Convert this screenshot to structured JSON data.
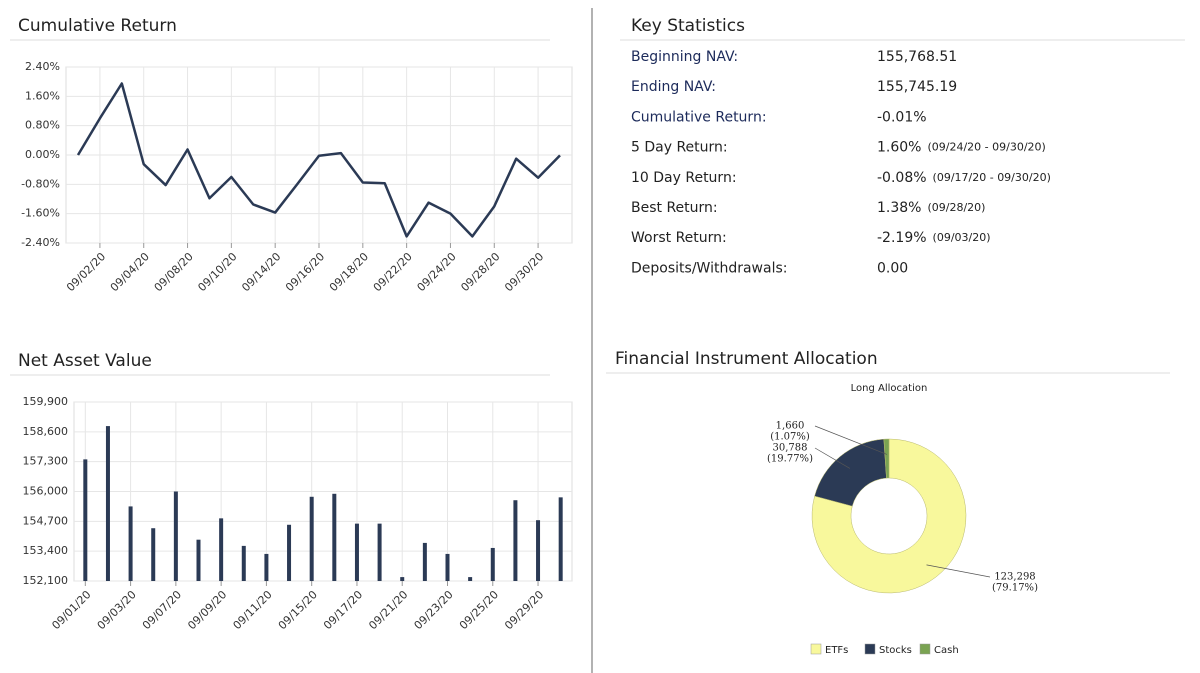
{
  "chart_data": [
    {
      "type": "line",
      "title": "Cumulative Return",
      "color": "#2b3a55",
      "categories": [
        null,
        "09/02/20",
        null,
        "09/04/20",
        null,
        "09/08/20",
        null,
        "09/10/20",
        null,
        "09/14/20",
        null,
        "09/16/20",
        null,
        "09/18/20",
        null,
        "09/22/20",
        null,
        "09/24/20",
        null,
        "09/28/20",
        null,
        "09/30/20",
        null
      ],
      "values": [
        0,
        1.0,
        1.95,
        -0.25,
        -0.82,
        0.15,
        -1.18,
        -0.6,
        -1.35,
        -1.57,
        -0.8,
        -0.02,
        0.05,
        -0.75,
        -0.77,
        -2.22,
        -1.3,
        -1.6,
        -2.22,
        -1.4,
        -0.1,
        -0.62,
        -0.01
      ],
      "ylim": [
        -2.4,
        2.4
      ],
      "yticks": [
        {
          "value": 2.4,
          "label": "2.40%"
        },
        {
          "value": 1.6,
          "label": "1.60%"
        },
        {
          "value": 0.8,
          "label": "0.80%"
        },
        {
          "value": 0,
          "label": "0.00%"
        },
        {
          "value": -0.8,
          "label": "-0.80%"
        },
        {
          "value": -1.6,
          "label": "-1.60%"
        },
        {
          "value": -2.4,
          "label": "-2.40%"
        }
      ],
      "grid": true
    },
    {
      "type": "bar",
      "title": "Net Asset Value",
      "color": "#2b3a55",
      "categories": [
        "09/01/20",
        null,
        "09/03/20",
        null,
        "09/07/20",
        null,
        "09/09/20",
        null,
        "09/11/20",
        null,
        "09/15/20",
        null,
        "09/17/20",
        null,
        "09/21/20",
        null,
        "09/23/20",
        null,
        "09/25/20",
        null,
        "09/29/20",
        null
      ],
      "values": [
        157400,
        158850,
        155350,
        154400,
        156000,
        153900,
        154830,
        153630,
        153280,
        154550,
        155770,
        155900,
        154600,
        154600,
        152270,
        153760,
        153280,
        152270,
        153540,
        155620,
        154750,
        155745
      ],
      "ylim": [
        152100,
        159900
      ],
      "yticks": [
        {
          "value": 159900,
          "label": "159,900"
        },
        {
          "value": 158600,
          "label": "158,600"
        },
        {
          "value": 157300,
          "label": "157,300"
        },
        {
          "value": 156000,
          "label": "156,000"
        },
        {
          "value": 154700,
          "label": "154,700"
        },
        {
          "value": 153400,
          "label": "153,400"
        },
        {
          "value": 152100,
          "label": "152,100"
        }
      ],
      "grid": true
    },
    {
      "type": "pie",
      "title": "Financial Instrument Allocation",
      "subtitle": "Long Allocation",
      "donut": true,
      "categories": [
        "ETFs",
        "Stocks",
        "Cash"
      ],
      "values": [
        123298,
        30788,
        1660
      ],
      "value_labels": [
        "123,298",
        "30,788",
        "1,660"
      ],
      "percent_labels": [
        "(79.17%)",
        "(19.77%)",
        "(1.07%)"
      ],
      "colors": [
        "#f8f89c",
        "#2b3a55",
        "#7aa352"
      ],
      "legend": "bottom"
    }
  ],
  "key_statistics": {
    "title": "Key Statistics",
    "rows": [
      {
        "label": "Beginning NAV:",
        "value": "155,768.51"
      },
      {
        "label": "Ending NAV:",
        "value": "155,745.19"
      },
      {
        "label": "Cumulative Return:",
        "value": "-0.01%"
      },
      {
        "label": "5 Day Return:",
        "value": "1.60%",
        "note": "(09/24/20 - 09/30/20)"
      },
      {
        "label": "10 Day Return:",
        "value": "-0.08%",
        "note": "(09/17/20 - 09/30/20)"
      },
      {
        "label": "Best Return:",
        "value": "1.38%",
        "note": "(09/28/20)"
      },
      {
        "label": "Worst Return:",
        "value": "-2.19%",
        "note": "(09/03/20)"
      },
      {
        "label": "Deposits/Withdrawals:",
        "value": "0.00"
      }
    ]
  }
}
